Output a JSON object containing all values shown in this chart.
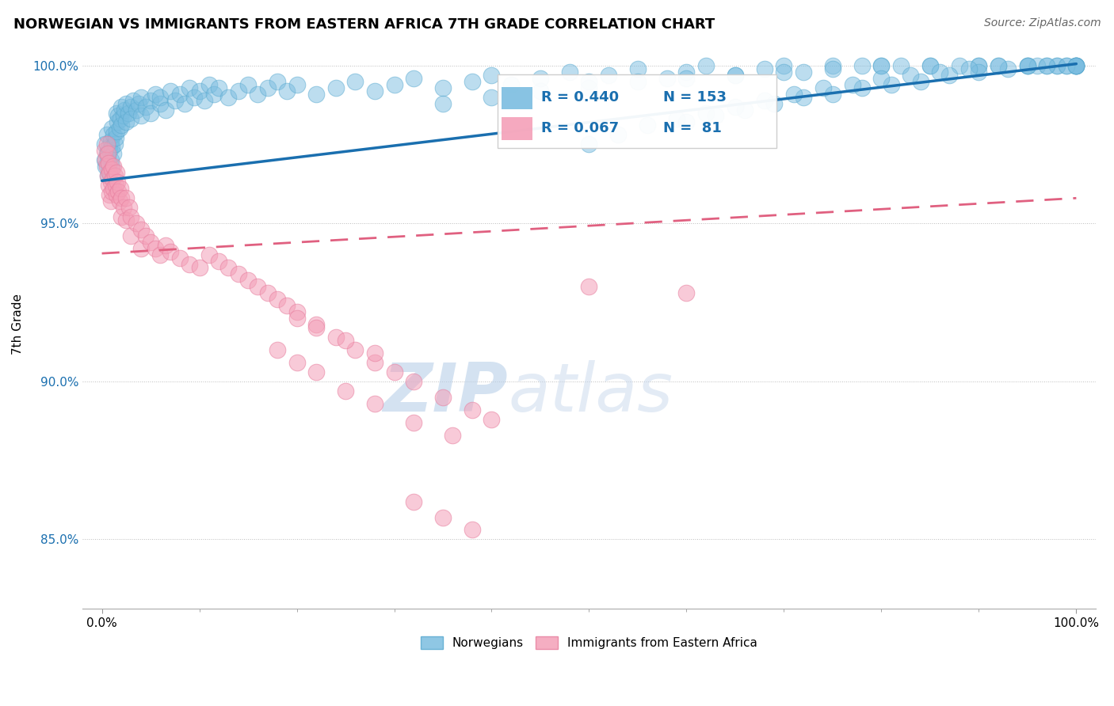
{
  "title": "NORWEGIAN VS IMMIGRANTS FROM EASTERN AFRICA 7TH GRADE CORRELATION CHART",
  "source_text": "Source: ZipAtlas.com",
  "ylabel": "7th Grade",
  "watermark_zip": "ZIP",
  "watermark_atlas": "atlas",
  "xlim": [
    -0.02,
    1.02
  ],
  "ylim": [
    0.828,
    1.008
  ],
  "x_ticks": [
    0.0,
    1.0
  ],
  "x_tick_labels": [
    "0.0%",
    "100.0%"
  ],
  "y_ticks": [
    0.85,
    0.9,
    0.95,
    1.0
  ],
  "y_tick_labels": [
    "85.0%",
    "90.0%",
    "95.0%",
    "100.0%"
  ],
  "blue_color": "#7bbde0",
  "blue_edge_color": "#5aaad0",
  "pink_color": "#f4a0b8",
  "pink_edge_color": "#e880a0",
  "blue_line_color": "#1a6faf",
  "pink_line_color": "#e06080",
  "legend_blue_R": "R = 0.440",
  "legend_blue_N": "N = 153",
  "legend_pink_R": "R = 0.067",
  "legend_pink_N": "N =  81",
  "blue_trend_y_start": 0.9635,
  "blue_trend_y_end": 1.0005,
  "pink_trend_y_start": 0.9405,
  "pink_trend_y_end": 0.958,
  "blue_scatter_x": [
    0.003,
    0.003,
    0.004,
    0.005,
    0.005,
    0.006,
    0.006,
    0.007,
    0.007,
    0.008,
    0.008,
    0.009,
    0.009,
    0.01,
    0.01,
    0.01,
    0.012,
    0.012,
    0.013,
    0.014,
    0.015,
    0.015,
    0.016,
    0.017,
    0.018,
    0.019,
    0.02,
    0.02,
    0.022,
    0.023,
    0.025,
    0.025,
    0.027,
    0.03,
    0.03,
    0.032,
    0.035,
    0.038,
    0.04,
    0.04,
    0.045,
    0.05,
    0.05,
    0.055,
    0.06,
    0.06,
    0.065,
    0.07,
    0.075,
    0.08,
    0.085,
    0.09,
    0.095,
    0.1,
    0.105,
    0.11,
    0.115,
    0.12,
    0.13,
    0.14,
    0.15,
    0.16,
    0.17,
    0.18,
    0.19,
    0.2,
    0.22,
    0.24,
    0.26,
    0.28,
    0.3,
    0.32,
    0.35,
    0.38,
    0.4,
    0.42,
    0.45,
    0.48,
    0.5,
    0.52,
    0.55,
    0.58,
    0.6,
    0.62,
    0.65,
    0.68,
    0.7,
    0.72,
    0.75,
    0.78,
    0.8,
    0.82,
    0.85,
    0.88,
    0.9,
    0.92,
    0.95,
    0.97,
    0.98,
    0.99,
    1.0,
    1.0,
    1.0,
    0.35,
    0.4,
    0.45,
    0.5,
    0.55,
    0.6,
    0.65,
    0.7,
    0.75,
    0.8,
    0.85,
    0.9,
    0.95,
    1.0,
    0.6,
    0.63,
    0.66,
    0.69,
    0.72,
    0.75,
    0.78,
    0.81,
    0.84,
    0.87,
    0.9,
    0.93,
    0.96,
    0.98,
    1.0,
    0.5,
    0.53,
    0.56,
    0.59,
    0.62,
    0.65,
    0.68,
    0.71,
    0.74,
    0.77,
    0.8,
    0.83,
    0.86,
    0.89,
    0.92,
    0.95,
    0.97,
    0.99,
    1.0
  ],
  "blue_scatter_y": [
    0.97,
    0.975,
    0.968,
    0.972,
    0.978,
    0.965,
    0.971,
    0.968,
    0.974,
    0.966,
    0.973,
    0.97,
    0.976,
    0.968,
    0.974,
    0.98,
    0.972,
    0.978,
    0.975,
    0.977,
    0.979,
    0.985,
    0.982,
    0.984,
    0.98,
    0.983,
    0.981,
    0.987,
    0.984,
    0.986,
    0.982,
    0.988,
    0.985,
    0.987,
    0.983,
    0.989,
    0.986,
    0.988,
    0.984,
    0.99,
    0.987,
    0.989,
    0.985,
    0.991,
    0.988,
    0.99,
    0.986,
    0.992,
    0.989,
    0.991,
    0.988,
    0.993,
    0.99,
    0.992,
    0.989,
    0.994,
    0.991,
    0.993,
    0.99,
    0.992,
    0.994,
    0.991,
    0.993,
    0.995,
    0.992,
    0.994,
    0.991,
    0.993,
    0.995,
    0.992,
    0.994,
    0.996,
    0.993,
    0.995,
    0.997,
    0.994,
    0.996,
    0.998,
    0.995,
    0.997,
    0.999,
    0.996,
    0.998,
    1.0,
    0.997,
    0.999,
    1.0,
    0.998,
    1.0,
    1.0,
    1.0,
    1.0,
    1.0,
    1.0,
    1.0,
    1.0,
    1.0,
    1.0,
    1.0,
    1.0,
    1.0,
    1.0,
    1.0,
    0.988,
    0.99,
    0.992,
    0.993,
    0.995,
    0.996,
    0.997,
    0.998,
    0.999,
    1.0,
    1.0,
    1.0,
    1.0,
    1.0,
    0.982,
    0.984,
    0.986,
    0.988,
    0.99,
    0.991,
    0.993,
    0.994,
    0.995,
    0.997,
    0.998,
    0.999,
    1.0,
    1.0,
    1.0,
    0.975,
    0.978,
    0.981,
    0.983,
    0.985,
    0.987,
    0.989,
    0.991,
    0.993,
    0.994,
    0.996,
    0.997,
    0.998,
    0.999,
    1.0,
    1.0,
    1.0,
    1.0,
    1.0
  ],
  "pink_scatter_x": [
    0.003,
    0.004,
    0.005,
    0.005,
    0.006,
    0.006,
    0.007,
    0.007,
    0.008,
    0.008,
    0.009,
    0.009,
    0.01,
    0.01,
    0.011,
    0.012,
    0.012,
    0.013,
    0.014,
    0.015,
    0.015,
    0.016,
    0.017,
    0.018,
    0.019,
    0.02,
    0.02,
    0.022,
    0.025,
    0.025,
    0.028,
    0.03,
    0.03,
    0.035,
    0.04,
    0.04,
    0.045,
    0.05,
    0.055,
    0.06,
    0.065,
    0.07,
    0.08,
    0.09,
    0.1,
    0.11,
    0.12,
    0.13,
    0.14,
    0.15,
    0.16,
    0.17,
    0.18,
    0.19,
    0.2,
    0.22,
    0.24,
    0.26,
    0.28,
    0.3,
    0.32,
    0.35,
    0.38,
    0.4,
    0.18,
    0.2,
    0.22,
    0.25,
    0.28,
    0.32,
    0.36,
    0.2,
    0.22,
    0.25,
    0.28,
    0.5,
    0.6,
    0.32,
    0.35,
    0.38
  ],
  "pink_scatter_y": [
    0.973,
    0.97,
    0.975,
    0.968,
    0.972,
    0.965,
    0.969,
    0.962,
    0.966,
    0.959,
    0.963,
    0.957,
    0.967,
    0.96,
    0.964,
    0.968,
    0.961,
    0.965,
    0.962,
    0.966,
    0.959,
    0.963,
    0.96,
    0.957,
    0.961,
    0.958,
    0.952,
    0.955,
    0.958,
    0.951,
    0.955,
    0.952,
    0.946,
    0.95,
    0.948,
    0.942,
    0.946,
    0.944,
    0.942,
    0.94,
    0.943,
    0.941,
    0.939,
    0.937,
    0.936,
    0.94,
    0.938,
    0.936,
    0.934,
    0.932,
    0.93,
    0.928,
    0.926,
    0.924,
    0.922,
    0.918,
    0.914,
    0.91,
    0.906,
    0.903,
    0.9,
    0.895,
    0.891,
    0.888,
    0.91,
    0.906,
    0.903,
    0.897,
    0.893,
    0.887,
    0.883,
    0.92,
    0.917,
    0.913,
    0.909,
    0.93,
    0.928,
    0.862,
    0.857,
    0.853
  ]
}
